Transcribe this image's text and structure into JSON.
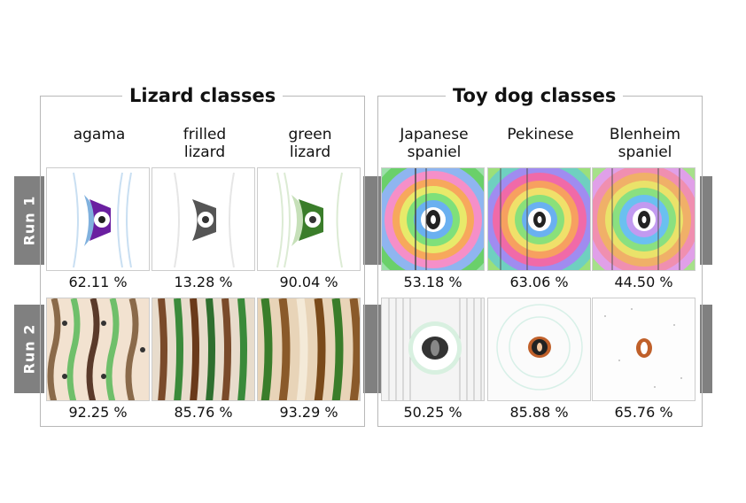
{
  "panels": {
    "lizard": {
      "title": "Lizard classes",
      "columns": [
        "agama",
        "frilled\nlizard",
        "green\nlizard"
      ]
    },
    "dog": {
      "title": "Toy dog classes",
      "columns": [
        "Japanese\nspaniel",
        "Pekinese",
        "Blenheim\nspaniel"
      ]
    }
  },
  "runs": [
    "Run 1",
    "Run 2"
  ],
  "scores": {
    "lizard": {
      "run1": [
        "62.11 %",
        "13.28 %",
        "90.04 %"
      ],
      "run2": [
        "92.25 %",
        "85.76 %",
        "93.29 %"
      ]
    },
    "dog": {
      "run1": [
        "53.18 %",
        "63.06 %",
        "44.50 %"
      ],
      "run2": [
        "50.25 %",
        "85.88 %",
        "65.76 %"
      ]
    }
  },
  "colors": {
    "agama": "#6a1fa0",
    "frilled": "#555555",
    "green": "#3a7d2a",
    "tab": "#808080"
  }
}
